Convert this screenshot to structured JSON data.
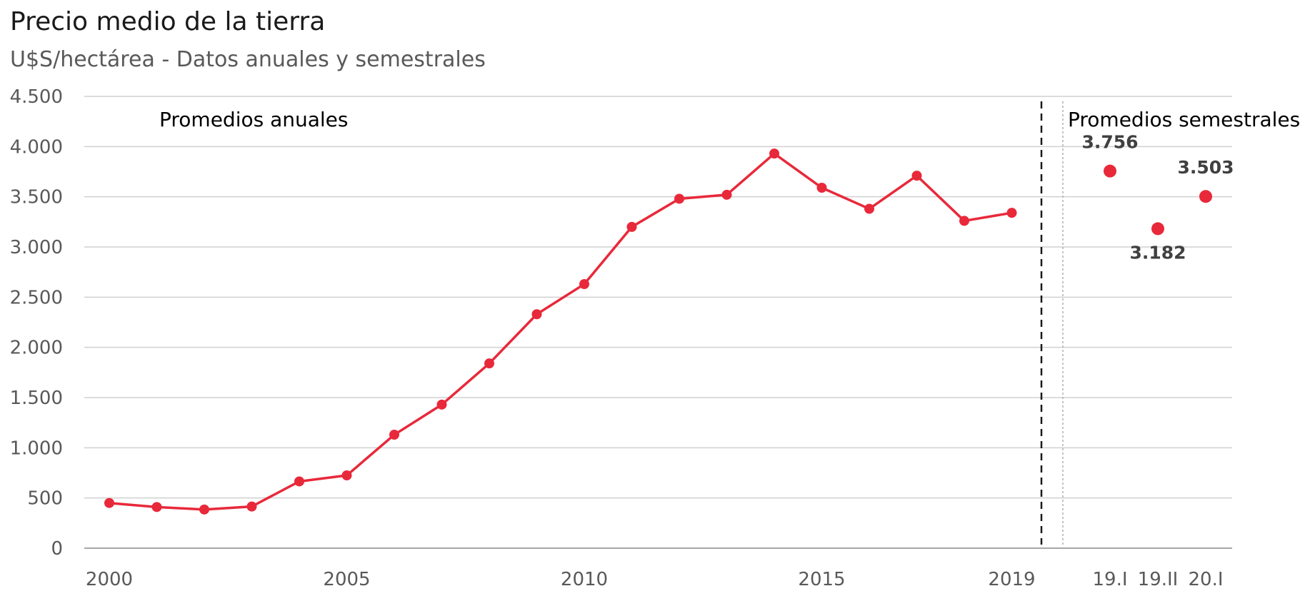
{
  "chart_data": {
    "type": "line",
    "title": "Precio medio de la tierra",
    "subtitle": "U$S/hectárea - Datos anuales y semestrales",
    "ylim": [
      0,
      4500
    ],
    "y_ticks": [
      0,
      500,
      1000,
      1500,
      2000,
      2500,
      3000,
      3500,
      4000,
      4500
    ],
    "y_tick_labels": [
      "0",
      "500",
      "1.000",
      "1.500",
      "2.000",
      "2.500",
      "3.000",
      "3.500",
      "4.000",
      "4.500"
    ],
    "x_tick_labels": [
      "2000",
      "2005",
      "2010",
      "2015",
      "2019",
      "19.I",
      "19.II",
      "20.I"
    ],
    "grid": true,
    "color": "#E8293A",
    "annotations": [
      "Promedios anuales",
      "Promedios semestrales"
    ],
    "annual": {
      "x": [
        2000,
        2001,
        2002,
        2003,
        2004,
        2005,
        2006,
        2007,
        2008,
        2009,
        2010,
        2011,
        2012,
        2013,
        2014,
        2015,
        2016,
        2017,
        2018,
        2019
      ],
      "values": [
        450,
        410,
        385,
        415,
        665,
        725,
        1130,
        1430,
        1840,
        2330,
        2630,
        3200,
        3480,
        3520,
        3930,
        3590,
        3380,
        3710,
        3260,
        3340
      ]
    },
    "semester": {
      "categories": [
        "19.I",
        "19.II",
        "20.I"
      ],
      "values": [
        3756,
        3182,
        3503
      ],
      "labels": [
        "3.756",
        "3.182",
        "3.503"
      ]
    }
  }
}
